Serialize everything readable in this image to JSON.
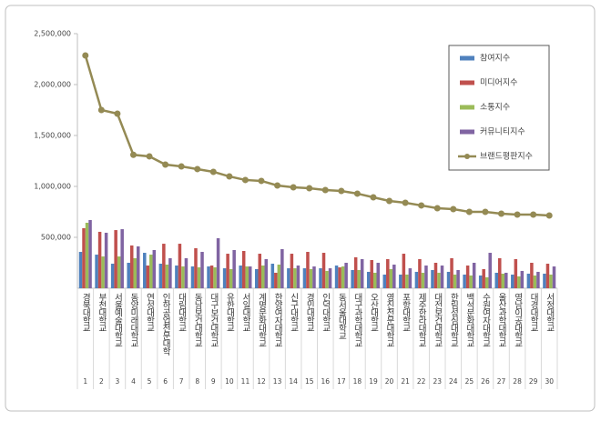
{
  "chart_data": {
    "type": "bar_line",
    "categories": [
      "경북대학교",
      "부천대학교",
      "서울예술대학교",
      "동양미래대학교",
      "연성대학교",
      "인하공업전문대학",
      "대림대학교",
      "동남보건대학교",
      "대구보건대학교",
      "유한대학교",
      "서일대학교",
      "계명문화대학교",
      "한양여자대학교",
      "신구대학교",
      "경민대학교",
      "인덕대학교",
      "동서울대학교",
      "대구과학대학교",
      "오산대학교",
      "영진전문대학교",
      "포항대학교",
      "제주한라대학교",
      "대전보건대학교",
      "한림성심대학교",
      "백석문화대학교",
      "수원여자대학교",
      "울산과학대학교",
      "영남이공대학교",
      "대경대학교",
      "서정대학교"
    ],
    "ranks": [
      1,
      2,
      3,
      4,
      5,
      6,
      7,
      8,
      9,
      10,
      11,
      12,
      13,
      14,
      15,
      16,
      17,
      18,
      19,
      20,
      21,
      22,
      23,
      24,
      25,
      26,
      27,
      28,
      29,
      30
    ],
    "ylim": [
      0,
      2500000
    ],
    "yticks": [
      {
        "value": 500000,
        "label": "500,000"
      },
      {
        "value": 1000000,
        "label": "1,000,000"
      },
      {
        "value": 1500000,
        "label": "1,500,000"
      },
      {
        "value": 2000000,
        "label": "2,000,000"
      },
      {
        "value": 2500000,
        "label": "2,500,000"
      }
    ],
    "legend_position": "upper right",
    "series": [
      {
        "name": "참여지수",
        "color": "#4f81bd",
        "kind": "bar",
        "values": [
          357000,
          330000,
          241000,
          250000,
          348000,
          241000,
          223000,
          214000,
          214000,
          196000,
          223000,
          188000,
          241000,
          196000,
          196000,
          196000,
          223000,
          179000,
          161000,
          134000,
          134000,
          161000,
          179000,
          161000,
          134000,
          125000,
          152000,
          134000,
          143000,
          143000
        ]
      },
      {
        "name": "미디어지수",
        "color": "#c0504d",
        "kind": "bar",
        "values": [
          590000,
          554000,
          571000,
          420000,
          223000,
          437000,
          437000,
          393000,
          223000,
          339000,
          366000,
          339000,
          152000,
          339000,
          357000,
          348000,
          205000,
          304000,
          277000,
          286000,
          339000,
          286000,
          250000,
          295000,
          223000,
          188000,
          295000,
          286000,
          250000,
          241000
        ]
      },
      {
        "name": "소통지수",
        "color": "#9bbb59",
        "kind": "bar",
        "values": [
          643000,
          312000,
          312000,
          295000,
          330000,
          232000,
          214000,
          205000,
          205000,
          188000,
          214000,
          223000,
          232000,
          196000,
          188000,
          170000,
          214000,
          179000,
          152000,
          188000,
          134000,
          152000,
          152000,
          134000,
          125000,
          107000,
          143000,
          116000,
          125000,
          134000
        ]
      },
      {
        "name": "커뮤니티지수",
        "color": "#8064a2",
        "kind": "bar",
        "values": [
          670000,
          545000,
          580000,
          411000,
          375000,
          295000,
          295000,
          357000,
          491000,
          375000,
          214000,
          286000,
          384000,
          223000,
          214000,
          196000,
          250000,
          286000,
          250000,
          232000,
          196000,
          223000,
          223000,
          179000,
          250000,
          348000,
          152000,
          170000,
          161000,
          214000
        ]
      },
      {
        "name": "브랜드평판지수",
        "color": "#948a54",
        "kind": "line",
        "values": [
          2286000,
          1750000,
          1714000,
          1310000,
          1295000,
          1214000,
          1196000,
          1170000,
          1143000,
          1098000,
          1063000,
          1054000,
          1009000,
          991000,
          982000,
          964000,
          955000,
          929000,
          893000,
          857000,
          839000,
          813000,
          786000,
          777000,
          750000,
          750000,
          732000,
          723000,
          723000,
          714000
        ]
      }
    ]
  }
}
